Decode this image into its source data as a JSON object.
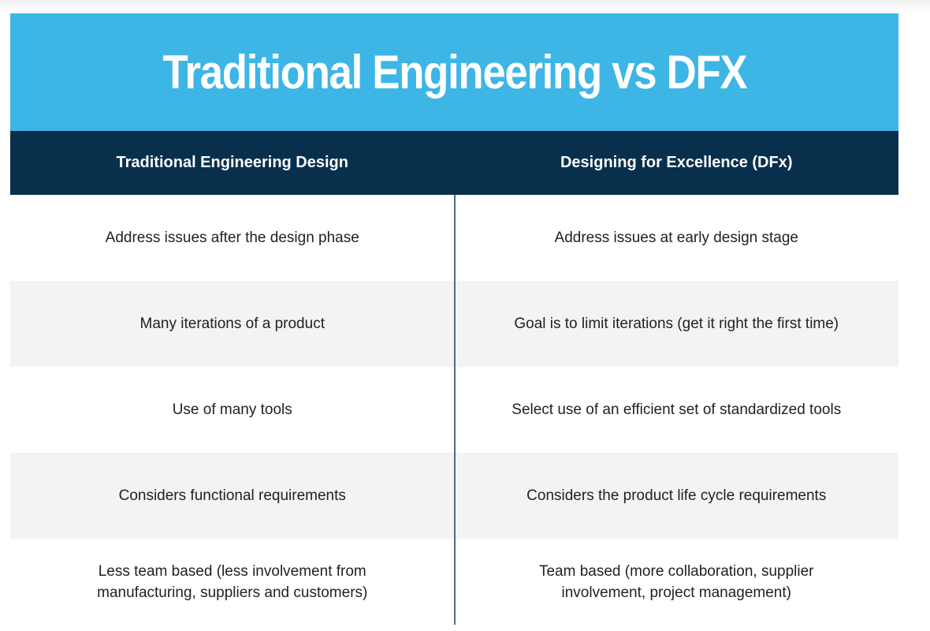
{
  "header": {
    "title": "Traditional Engineering vs DFX"
  },
  "table": {
    "columns": [
      "Traditional Engineering Design",
      "Designing for Excellence (DFx)"
    ],
    "rows": [
      [
        "Address issues after the design phase",
        "Address issues at early design stage"
      ],
      [
        "Many iterations of a product",
        "Goal is to limit iterations (get it right the first time)"
      ],
      [
        "Use of many tools",
        "Select use of an efficient set of standardized tools"
      ],
      [
        "Considers functional requirements",
        "Considers the product life cycle requirements"
      ],
      [
        "Less team based (less involvement from manufacturing, suppliers and customers)",
        "Team based (more collaboration, supplier involvement, project management)"
      ]
    ]
  }
}
